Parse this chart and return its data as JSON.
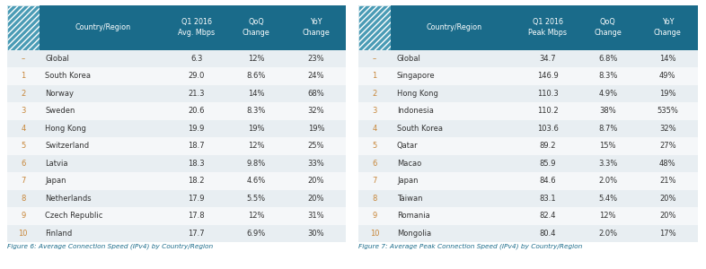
{
  "table1": {
    "caption": "Figure 6: Average Connection Speed (IPv4) by Country/Region",
    "header": [
      "Country/Region",
      "Q1 2016\nAvg. Mbps",
      "QoQ\nChange",
      "YoY\nChange"
    ],
    "rows": [
      [
        "–",
        "Global",
        "6.3",
        "12%",
        "23%"
      ],
      [
        "1",
        "South Korea",
        "29.0",
        "8.6%",
        "24%"
      ],
      [
        "2",
        "Norway",
        "21.3",
        "14%",
        "68%"
      ],
      [
        "3",
        "Sweden",
        "20.6",
        "8.3%",
        "32%"
      ],
      [
        "4",
        "Hong Kong",
        "19.9",
        "19%",
        "19%"
      ],
      [
        "5",
        "Switzerland",
        "18.7",
        "12%",
        "25%"
      ],
      [
        "6",
        "Latvia",
        "18.3",
        "9.8%",
        "33%"
      ],
      [
        "7",
        "Japan",
        "18.2",
        "4.6%",
        "20%"
      ],
      [
        "8",
        "Netherlands",
        "17.9",
        "5.5%",
        "20%"
      ],
      [
        "9",
        "Czech Republic",
        "17.8",
        "12%",
        "31%"
      ],
      [
        "10",
        "Finland",
        "17.7",
        "6.9%",
        "30%"
      ]
    ]
  },
  "table2": {
    "caption": "Figure 7: Average Peak Connection Speed (IPv4) by Country/Region",
    "header": [
      "Country/Region",
      "Q1 2016\nPeak Mbps",
      "QoQ\nChange",
      "YoY\nChange"
    ],
    "rows": [
      [
        "–",
        "Global",
        "34.7",
        "6.8%",
        "14%"
      ],
      [
        "1",
        "Singapore",
        "146.9",
        "8.3%",
        "49%"
      ],
      [
        "2",
        "Hong Kong",
        "110.3",
        "4.9%",
        "19%"
      ],
      [
        "3",
        "Indonesia",
        "110.2",
        "38%",
        "535%"
      ],
      [
        "4",
        "South Korea",
        "103.6",
        "8.7%",
        "32%"
      ],
      [
        "5",
        "Qatar",
        "89.2",
        "15%",
        "27%"
      ],
      [
        "6",
        "Macao",
        "85.9",
        "3.3%",
        "48%"
      ],
      [
        "7",
        "Japan",
        "84.6",
        "2.0%",
        "21%"
      ],
      [
        "8",
        "Taiwan",
        "83.1",
        "5.4%",
        "20%"
      ],
      [
        "9",
        "Romania",
        "82.4",
        "12%",
        "20%"
      ],
      [
        "10",
        "Mongolia",
        "80.4",
        "2.0%",
        "17%"
      ]
    ]
  },
  "header_bg": "#1a6b8a",
  "row_bg_odd": "#e8eef2",
  "row_bg_even": "#f5f7f9",
  "header_text_color": "#ffffff",
  "rank_text_color": "#c8873a",
  "country_text_color": "#333333",
  "data_text_color": "#333333",
  "caption_color": "#1a6b8a",
  "hatch_bg_color": "#4a9bb5",
  "hatch_fg_color": "#6ab4cc",
  "bg_color": "#ffffff"
}
